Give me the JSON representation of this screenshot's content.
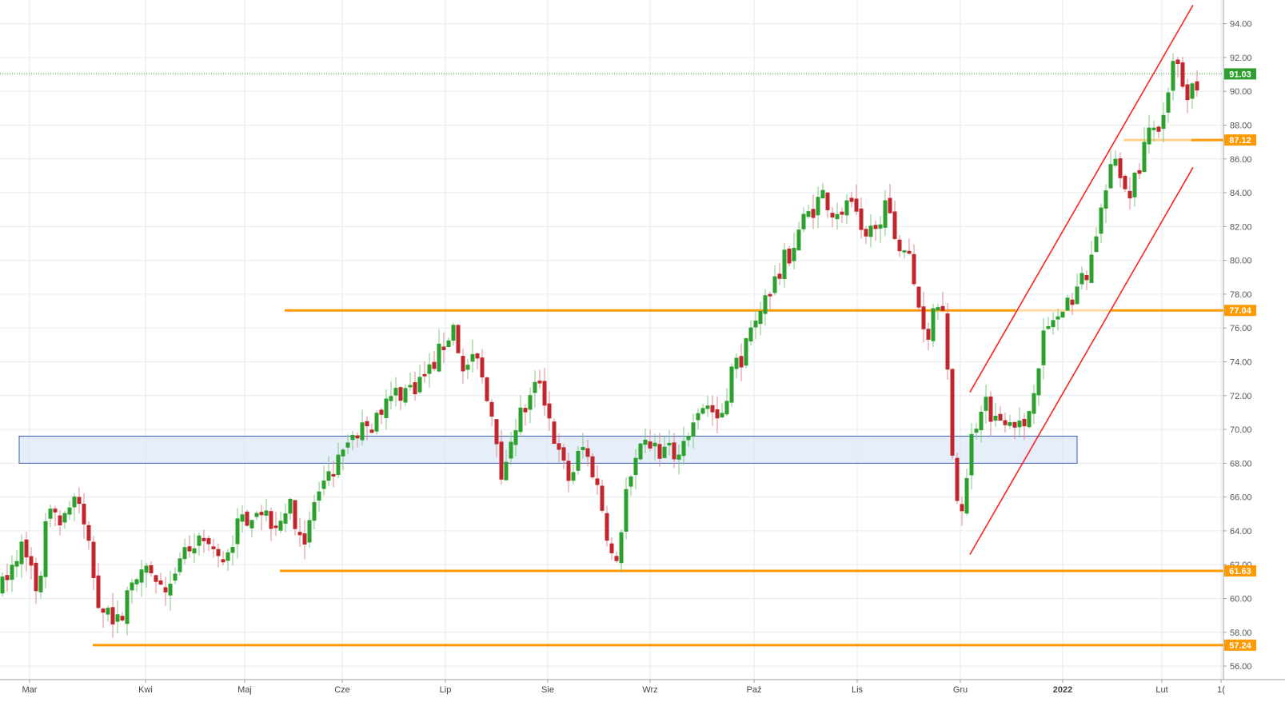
{
  "chart_data": {
    "type": "candlestick",
    "x_labels": [
      "Mar",
      "Kwi",
      "Maj",
      "Cze",
      "Lip",
      "Sie",
      "Wrz",
      "Paź",
      "Lis",
      "Gru",
      "2022",
      "Lut",
      "1("
    ],
    "y_ticks": [
      "56.00",
      "58.00",
      "60.00",
      "62.00",
      "64.00",
      "66.00",
      "68.00",
      "70.00",
      "72.00",
      "74.00",
      "76.00",
      "78.00",
      "80.00",
      "82.00",
      "84.00",
      "86.00",
      "88.00",
      "90.00",
      "92.00",
      "94.00"
    ],
    "ylim": [
      55.2,
      95.4
    ],
    "grid": true,
    "last_price": {
      "label": "91.03",
      "value": 91.03
    },
    "levels": [
      {
        "label": "87.12",
        "value": 87.12
      },
      {
        "label": "77.04",
        "value": 77.04
      },
      {
        "label": "61.63",
        "value": 61.63
      },
      {
        "label": "57.24",
        "value": 57.24
      }
    ],
    "zone": {
      "from": 68.0,
      "to": 69.6
    },
    "channel": {
      "upper": [
        {
          "x": "Gru",
          "y": 72.2
        },
        {
          "x": "Lut",
          "y": 95.1
        }
      ],
      "lower": [
        {
          "x": "Gru",
          "y": 62.6
        },
        {
          "x": "Lut",
          "y": 85.5
        }
      ]
    },
    "colors": {
      "up": "#2ca02c",
      "down": "#c0262c",
      "level": "#ff9900",
      "channel": "#ff2020",
      "zone": "#3a5bb0",
      "last": "#2e9e2e"
    }
  }
}
